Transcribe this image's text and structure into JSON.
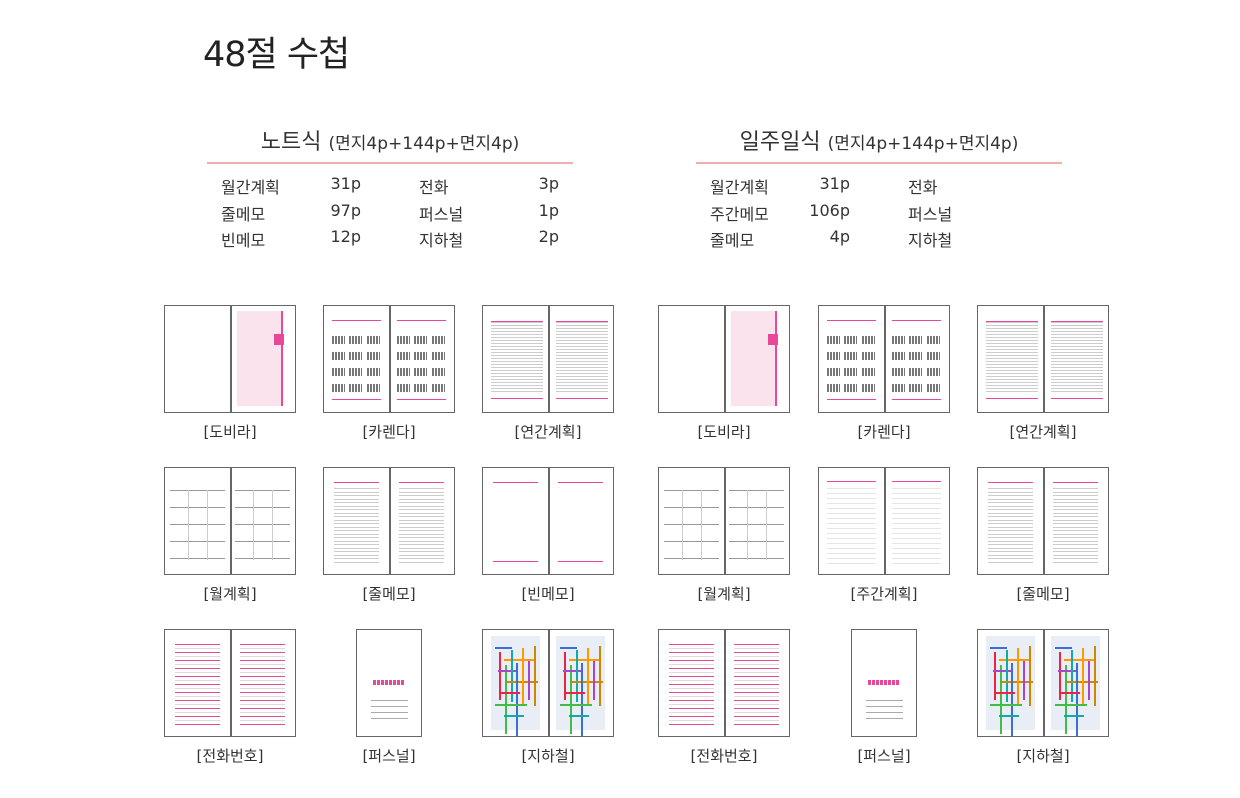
{
  "page_title": "48절 수첩",
  "sections": [
    {
      "title": "노트식",
      "subtitle": "(면지4p+144p+면지4p)",
      "rows": [
        {
          "a": "월간계획",
          "av": "31p",
          "b": "전화",
          "bv": "3p"
        },
        {
          "a": "줄메모",
          "av": "97p",
          "b": "퍼스널",
          "bv": "1p"
        },
        {
          "a": "빈메모",
          "av": "12p",
          "b": "지하철",
          "bv": "2p"
        }
      ],
      "thumbnails": [
        {
          "label": "[도비라]",
          "kind": "cover"
        },
        {
          "label": "[카렌다]",
          "kind": "calendar"
        },
        {
          "label": "[연간계획]",
          "kind": "yearly"
        },
        {
          "label": "[월계획]",
          "kind": "monthly"
        },
        {
          "label": "[줄메모]",
          "kind": "lined"
        },
        {
          "label": "[빈메모]",
          "kind": "blank"
        },
        {
          "label": "[전화번호]",
          "kind": "phone"
        },
        {
          "label": "[퍼스널]",
          "kind": "personal"
        },
        {
          "label": "[지하철]",
          "kind": "subway"
        }
      ]
    },
    {
      "title": "일주일식",
      "subtitle": "(면지4p+144p+면지4p)",
      "rows": [
        {
          "a": "월간계획",
          "av": "31p",
          "b": "전화",
          "bv": ""
        },
        {
          "a": "주간메모",
          "av": "106p",
          "b": "퍼스널",
          "bv": ""
        },
        {
          "a": "줄메모",
          "av": "4p",
          "b": "지하철",
          "bv": ""
        }
      ],
      "thumbnails": [
        {
          "label": "[도비라]",
          "kind": "cover"
        },
        {
          "label": "[카렌다]",
          "kind": "calendar"
        },
        {
          "label": "[연간계획]",
          "kind": "yearly"
        },
        {
          "label": "[월계획]",
          "kind": "monthly"
        },
        {
          "label": "[주간계획]",
          "kind": "weekly"
        },
        {
          "label": "[줄메모]",
          "kind": "lined"
        },
        {
          "label": "[전화번호]",
          "kind": "phone"
        },
        {
          "label": "[퍼스널]",
          "kind": "personal"
        },
        {
          "label": "[지하철]",
          "kind": "subway"
        }
      ]
    }
  ],
  "colors": {
    "accent": "#e9479a",
    "divider": "#f0aeae",
    "cover_fill": "#fbe3ee"
  }
}
